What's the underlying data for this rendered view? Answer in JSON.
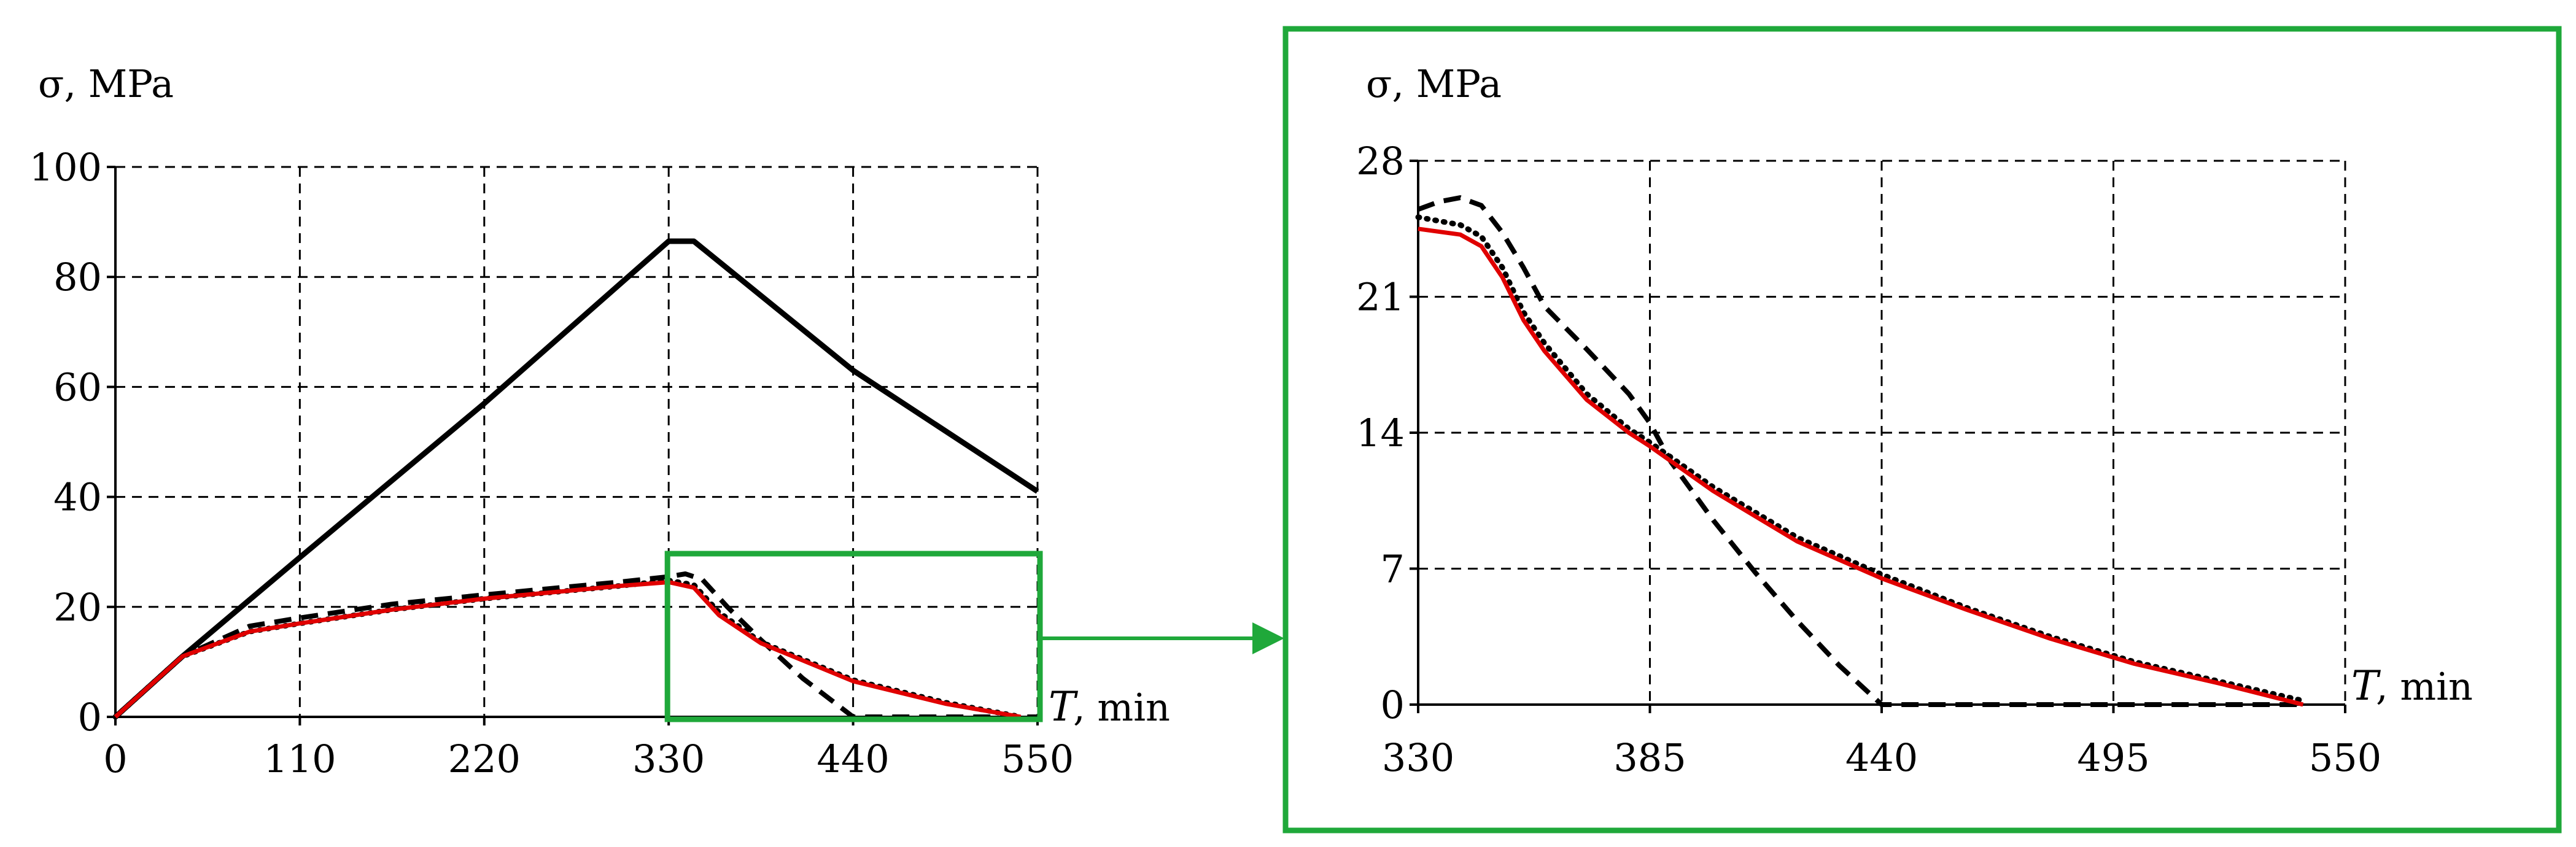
{
  "colors": {
    "highlight_green": "#1fa83a",
    "red_curve": "#e00000",
    "black": "#000000"
  },
  "chart_data": [
    {
      "type": "line",
      "title": "",
      "ylabel": "σ, MPa",
      "xlabel_symbol": "T",
      "xlabel_unit": ", min",
      "xlim": [
        0,
        550
      ],
      "ylim": [
        0,
        100
      ],
      "xticks": [
        0,
        110,
        220,
        330,
        440,
        550
      ],
      "yticks": [
        0,
        20,
        40,
        60,
        80,
        100
      ],
      "x_tick_labels": [
        "0",
        "110",
        "220",
        "330",
        "440",
        "550"
      ],
      "y_tick_labels": [
        "0",
        "20",
        "40",
        "60",
        "80",
        "100"
      ],
      "grid": true,
      "zoom_box_label": "zoomed region T 330–550 min, σ 0–28 MPa",
      "zoom_region": {
        "x": [
          330,
          550
        ],
        "y": [
          0,
          28
        ]
      },
      "series": [
        {
          "name": "upper solid",
          "style": "solid",
          "color": "#000000",
          "points": [
            [
              0,
              0
            ],
            [
              40,
              11
            ],
            [
              110,
              29
            ],
            [
              220,
              57
            ],
            [
              330,
              86.5
            ],
            [
              345,
              86.5
            ],
            [
              440,
              63
            ],
            [
              550,
              41
            ]
          ]
        },
        {
          "name": "dashed",
          "style": "dashed",
          "color": "#000000",
          "points": [
            [
              0,
              0
            ],
            [
              40,
              11
            ],
            [
              80,
              16.5
            ],
            [
              110,
              18
            ],
            [
              165,
              20.5
            ],
            [
              220,
              22.2
            ],
            [
              300,
              24.5
            ],
            [
              330,
              25.5
            ],
            [
              340,
              26
            ],
            [
              350,
              25
            ],
            [
              365,
              20
            ],
            [
              385,
              14
            ],
            [
              410,
              7
            ],
            [
              440,
              0
            ],
            [
              550,
              0
            ]
          ]
        },
        {
          "name": "dotted",
          "style": "dotted",
          "color": "#000000",
          "points": [
            [
              0,
              0
            ],
            [
              40,
              11
            ],
            [
              80,
              15.5
            ],
            [
              110,
              17
            ],
            [
              165,
              19.5
            ],
            [
              220,
              21.5
            ],
            [
              300,
              23.8
            ],
            [
              330,
              24.8
            ],
            [
              345,
              24
            ],
            [
              360,
              19
            ],
            [
              385,
              13.6
            ],
            [
              440,
              6.7
            ],
            [
              495,
              2.6
            ],
            [
              540,
              0
            ]
          ]
        },
        {
          "name": "red solid",
          "style": "solid",
          "color": "#e00000",
          "points": [
            [
              0,
              0
            ],
            [
              40,
              11
            ],
            [
              80,
              15.5
            ],
            [
              110,
              17
            ],
            [
              165,
              19.5
            ],
            [
              220,
              21.5
            ],
            [
              300,
              23.8
            ],
            [
              330,
              24.5
            ],
            [
              345,
              23.5
            ],
            [
              360,
              18.5
            ],
            [
              385,
              13.4
            ],
            [
              440,
              6.5
            ],
            [
              495,
              2.4
            ],
            [
              540,
              0
            ]
          ]
        }
      ]
    },
    {
      "type": "line",
      "title": "",
      "ylabel": "σ, MPa",
      "xlabel_symbol": "T",
      "xlabel_unit": ", min",
      "xlim": [
        330,
        550
      ],
      "ylim": [
        0,
        28
      ],
      "xticks": [
        330,
        385,
        440,
        495,
        550
      ],
      "yticks": [
        0,
        7,
        14,
        21,
        28
      ],
      "x_tick_labels": [
        "330",
        "385",
        "440",
        "495",
        "550"
      ],
      "y_tick_labels": [
        "0",
        "7",
        "14",
        "21",
        "28"
      ],
      "grid": true,
      "series": [
        {
          "name": "dashed",
          "style": "dashed",
          "color": "#000000",
          "points": [
            [
              330,
              25.5
            ],
            [
              335,
              25.9
            ],
            [
              340,
              26.1
            ],
            [
              345,
              25.7
            ],
            [
              350,
              24.3
            ],
            [
              355,
              22.5
            ],
            [
              360,
              20.5
            ],
            [
              370,
              18.3
            ],
            [
              380,
              16
            ],
            [
              385,
              14.5
            ],
            [
              390,
              12.5
            ],
            [
              400,
              9.5
            ],
            [
              410,
              6.8
            ],
            [
              420,
              4.3
            ],
            [
              430,
              2
            ],
            [
              440,
              0
            ],
            [
              540,
              0
            ]
          ]
        },
        {
          "name": "dotted",
          "style": "dotted",
          "color": "#000000",
          "points": [
            [
              330,
              25.1
            ],
            [
              340,
              24.7
            ],
            [
              345,
              24.1
            ],
            [
              350,
              22.5
            ],
            [
              355,
              20.2
            ],
            [
              360,
              18.6
            ],
            [
              370,
              16
            ],
            [
              380,
              14.2
            ],
            [
              385,
              13.5
            ],
            [
              400,
              11.2
            ],
            [
              420,
              8.6
            ],
            [
              440,
              6.7
            ],
            [
              460,
              5
            ],
            [
              480,
              3.5
            ],
            [
              500,
              2.2
            ],
            [
              520,
              1.2
            ],
            [
              540,
              0.2
            ]
          ]
        },
        {
          "name": "red solid",
          "style": "solid",
          "color": "#e00000",
          "points": [
            [
              330,
              24.5
            ],
            [
              340,
              24.2
            ],
            [
              345,
              23.6
            ],
            [
              350,
              22
            ],
            [
              355,
              19.8
            ],
            [
              360,
              18.2
            ],
            [
              370,
              15.7
            ],
            [
              380,
              14
            ],
            [
              385,
              13.3
            ],
            [
              400,
              11
            ],
            [
              420,
              8.4
            ],
            [
              440,
              6.5
            ],
            [
              460,
              4.9
            ],
            [
              480,
              3.4
            ],
            [
              500,
              2.1
            ],
            [
              520,
              1.1
            ],
            [
              540,
              0
            ]
          ]
        }
      ]
    }
  ]
}
